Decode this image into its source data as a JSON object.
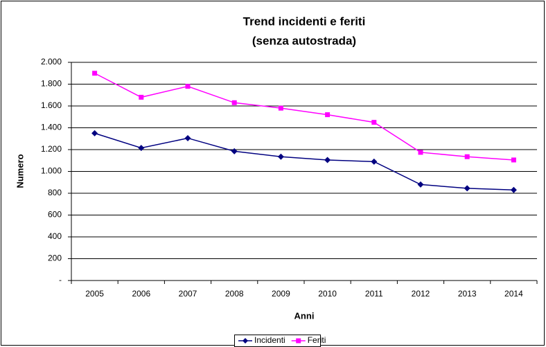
{
  "chart_data": {
    "type": "line",
    "title": "Trend incidenti e feriti",
    "subtitle": "(senza autostrada)",
    "x_label": "Anni",
    "y_label": "Numero",
    "categories": [
      "2005",
      "2006",
      "2007",
      "2008",
      "2009",
      "2010",
      "2011",
      "2012",
      "2013",
      "2014"
    ],
    "series": [
      {
        "name": "Incidenti",
        "color": "#000080",
        "marker": "diamond",
        "values": [
          1350,
          1215,
          1305,
          1185,
          1135,
          1105,
          1090,
          880,
          845,
          830
        ]
      },
      {
        "name": "Feriti",
        "color": "#ff00ff",
        "marker": "square",
        "values": [
          1900,
          1680,
          1780,
          1630,
          1580,
          1520,
          1450,
          1175,
          1135,
          1105
        ]
      }
    ],
    "ylim": [
      0,
      2000
    ],
    "yticks": [
      {
        "value": 0,
        "label": "-"
      },
      200,
      400,
      600,
      800,
      {
        "value": 1000,
        "label": "1.000"
      },
      {
        "value": 1200,
        "label": "1.200"
      },
      {
        "value": 1400,
        "label": "1.400"
      },
      {
        "value": 1600,
        "label": "1.600"
      },
      {
        "value": 1800,
        "label": "1.800"
      },
      {
        "value": 2000,
        "label": "2.000"
      }
    ],
    "grid": true,
    "legend": "bottom"
  }
}
